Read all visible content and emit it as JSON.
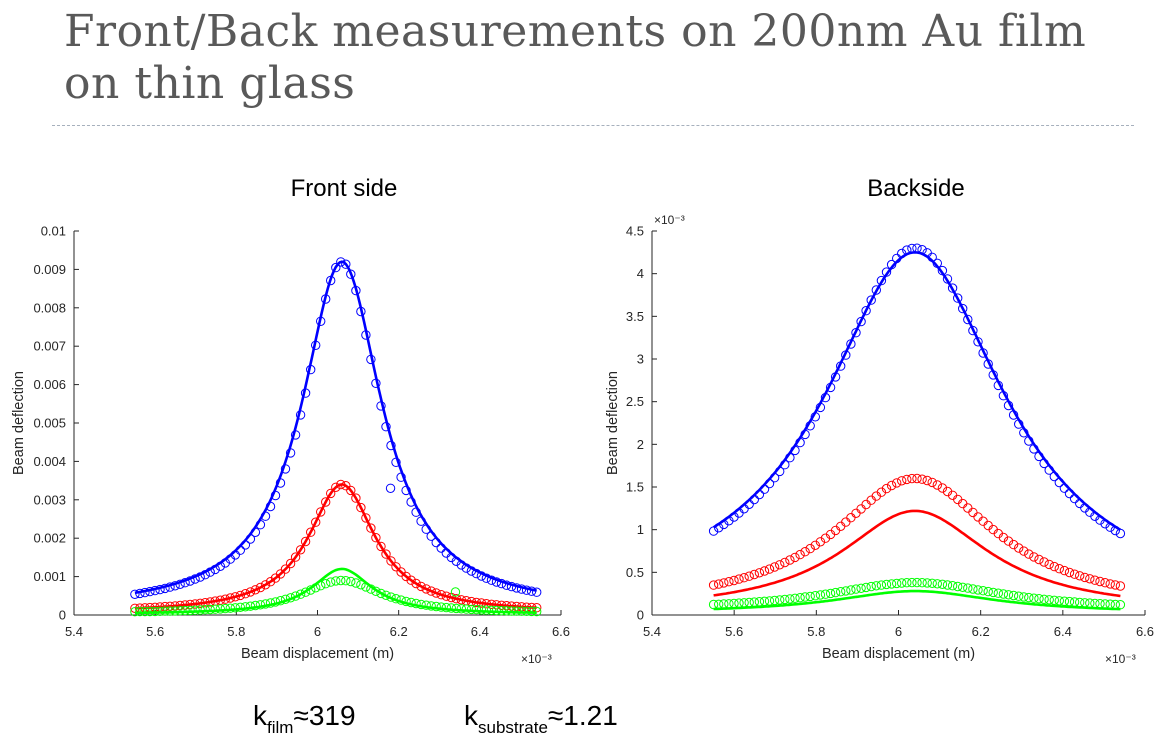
{
  "page": {
    "title": "Front/Back measurements on 200nm Au film on thin glass"
  },
  "formulas": [
    {
      "k": "k",
      "sub": "film",
      "rest": "≈319"
    },
    {
      "k": "k",
      "sub": "substrate",
      "rest": "≈1.21"
    }
  ],
  "colors": {
    "blue": "#0000ff",
    "red": "#ff0000",
    "green": "#00ff00",
    "title": "#595959"
  },
  "chart_data": [
    {
      "type": "scatter",
      "title": "Front side",
      "xlabel": "Beam displacement (m)",
      "ylabel": "Beam deflection",
      "x_exponent": "×10⁻³",
      "y_exponent": "",
      "xlim": [
        5.4,
        6.6
      ],
      "ylim": [
        0,
        0.01
      ],
      "xticks": [
        "5.4",
        "5.6",
        "5.8",
        "6",
        "6.2",
        "6.4",
        "6.6"
      ],
      "yticks": [
        "0",
        "0.001",
        "0.002",
        "0.003",
        "0.004",
        "0.005",
        "0.006",
        "0.007",
        "0.008",
        "0.009",
        "0.01"
      ],
      "series": [
        {
          "color": "#0000ff",
          "marker_peak": 0.0092,
          "marker_base": 0.0001,
          "marker_width": 0.115,
          "fit_peak": 0.0092,
          "fit_base": 0.0001,
          "fit_width": 0.12,
          "center": 6.06
        },
        {
          "color": "#ff0000",
          "marker_peak": 0.0034,
          "marker_base": 5e-05,
          "marker_width": 0.1,
          "fit_peak": 0.0034,
          "fit_base": 5e-05,
          "fit_width": 0.1,
          "center": 6.06
        },
        {
          "color": "#00ff00",
          "marker_peak": 0.0009,
          "marker_base": 4e-05,
          "marker_width": 0.12,
          "fit_peak": 0.0012,
          "fit_base": 2e-05,
          "fit_width": 0.09,
          "center": 6.06
        }
      ],
      "outliers": [
        {
          "color": "#0000ff",
          "x": 6.18,
          "y": 0.0033
        },
        {
          "color": "#00ff00",
          "x": 6.34,
          "y": 0.0006
        }
      ],
      "x_range": [
        5.55,
        6.54
      ]
    },
    {
      "type": "scatter",
      "title": "Backside",
      "xlabel": "Beam displacement (m)",
      "ylabel": "Beam deflection",
      "x_exponent": "×10⁻³",
      "y_exponent": "×10⁻³",
      "xlim": [
        5.4,
        6.6
      ],
      "ylim": [
        0,
        4.5
      ],
      "xticks": [
        "5.4",
        "5.6",
        "5.8",
        "6",
        "6.2",
        "6.4",
        "6.6"
      ],
      "yticks": [
        "0",
        "0.5",
        "1",
        "1.5",
        "2",
        "2.5",
        "3",
        "3.5",
        "4",
        "4.5"
      ],
      "series": [
        {
          "color": "#0000ff",
          "marker_peak": 4.3,
          "marker_base": 0.05,
          "marker_width": 0.26,
          "fit_peak": 4.25,
          "fit_base": 0.05,
          "fit_width": 0.27,
          "center": 6.04
        },
        {
          "color": "#ff0000",
          "marker_peak": 1.6,
          "marker_base": 0.05,
          "marker_width": 0.24,
          "fit_peak": 1.22,
          "fit_base": 0.03,
          "fit_width": 0.22,
          "center": 6.04
        },
        {
          "color": "#00ff00",
          "marker_peak": 0.38,
          "marker_base": 0.05,
          "marker_width": 0.26,
          "fit_peak": 0.28,
          "fit_base": 0.02,
          "fit_width": 0.24,
          "center": 6.04
        }
      ],
      "outliers": [],
      "x_range": [
        5.55,
        6.54
      ]
    }
  ]
}
